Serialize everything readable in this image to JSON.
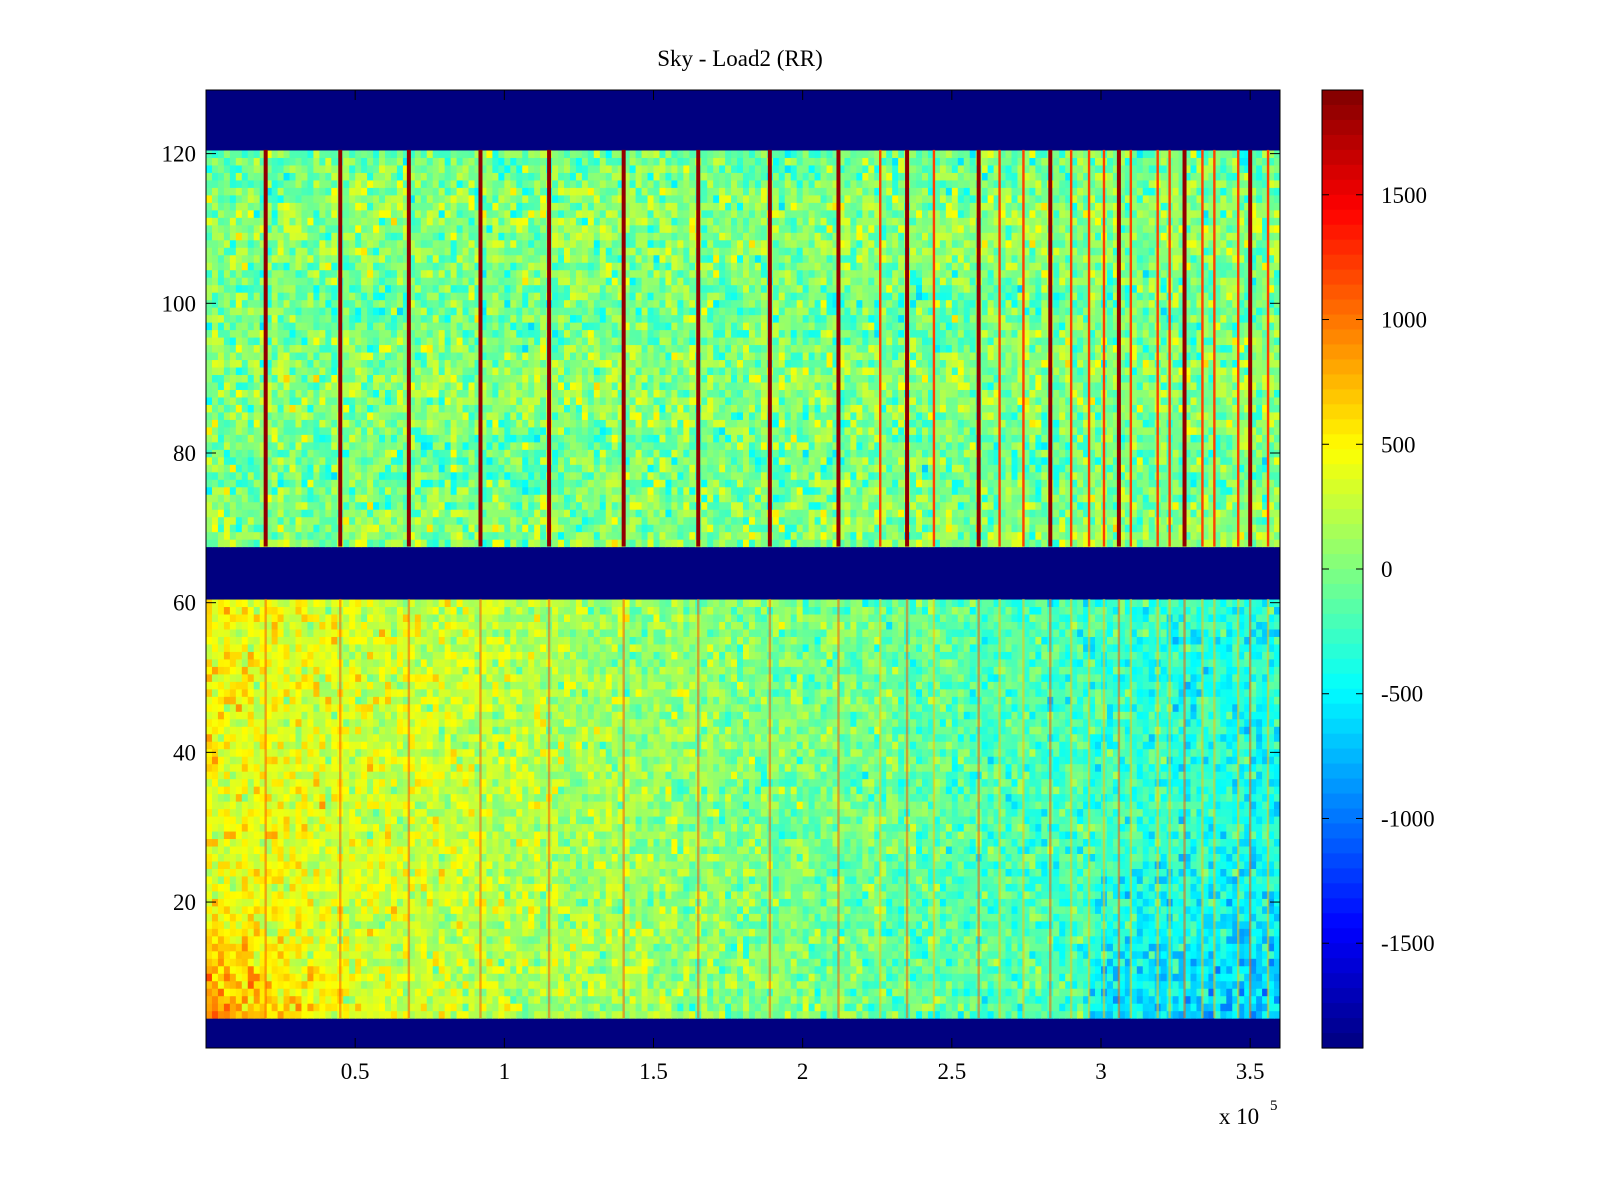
{
  "chart_data": {
    "type": "heatmap",
    "title": "Sky - Load2 (RR)",
    "xlabel": "",
    "ylabel": "",
    "x_multiplier_label": "x 10",
    "x_multiplier_exponent": "5",
    "xlim": [
      0,
      3.6
    ],
    "ylim": [
      1,
      128
    ],
    "x_ticks": [
      0.5,
      1,
      1.5,
      2,
      2.5,
      3,
      3.5
    ],
    "x_tick_labels": [
      "0.5",
      "1",
      "1.5",
      "2",
      "2.5",
      "3",
      "3.5"
    ],
    "y_ticks": [
      20,
      40,
      60,
      80,
      100,
      120
    ],
    "y_tick_labels": [
      "20",
      "40",
      "60",
      "80",
      "100",
      "120"
    ],
    "colormap": "jet",
    "clim": [
      -1920,
      1920
    ],
    "colorbar_ticks": [
      1500,
      1000,
      500,
      0,
      -500,
      -1000,
      -1500
    ],
    "colorbar_tick_labels": [
      "1500",
      "1000",
      "500",
      "0",
      "-500",
      "-1000",
      "-1500"
    ],
    "masked_row_ranges": [
      [
        1,
        4
      ],
      [
        61,
        67
      ],
      [
        121,
        128
      ]
    ],
    "masked_value": -1920,
    "vertical_spike_x": [
      0.2,
      0.45,
      0.68,
      0.92,
      1.15,
      1.4,
      1.65,
      1.89,
      2.12,
      2.35,
      2.59,
      2.83,
      3.06,
      3.28,
      3.5
    ],
    "minor_spike_x": [
      2.26,
      2.44,
      2.66,
      2.74,
      2.9,
      2.96,
      3.01,
      3.1,
      3.19,
      3.23,
      3.34,
      3.38,
      3.46,
      3.56
    ],
    "upper_block_mean": 0,
    "lower_block_gradient": {
      "left": 450,
      "right": -400
    },
    "bottom_left_hotspot_value": 1000
  },
  "colors": {
    "axis": "#000000",
    "background": "#ffffff",
    "mask": "#00008f"
  }
}
